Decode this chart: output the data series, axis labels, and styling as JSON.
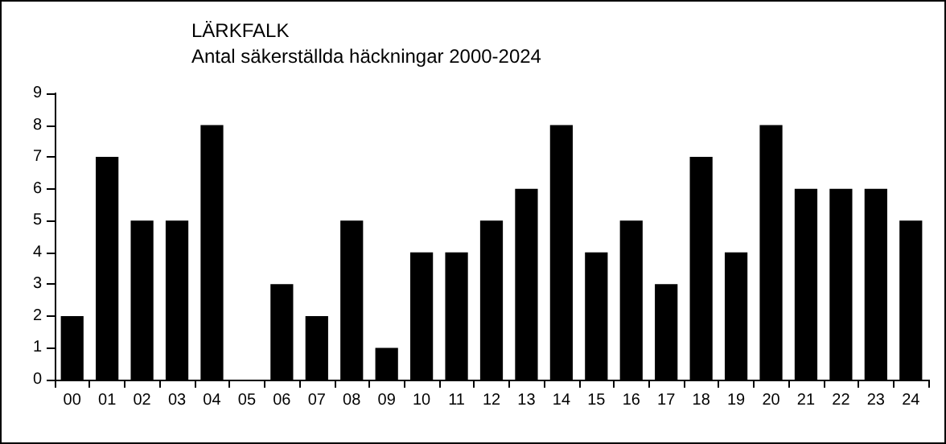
{
  "chart_data": {
    "type": "bar",
    "title": "LÄRKFALK",
    "subtitle": "Antal säkerställda häckningar 2000-2024",
    "categories": [
      "00",
      "01",
      "02",
      "03",
      "04",
      "05",
      "06",
      "07",
      "08",
      "09",
      "10",
      "11",
      "12",
      "13",
      "14",
      "15",
      "16",
      "17",
      "18",
      "19",
      "20",
      "21",
      "22",
      "23",
      "24"
    ],
    "values": [
      2,
      7,
      5,
      5,
      8,
      0,
      3,
      2,
      5,
      1,
      4,
      4,
      5,
      6,
      8,
      4,
      5,
      3,
      7,
      4,
      8,
      6,
      6,
      6,
      5
    ],
    "color": "#000000",
    "ylim": [
      0,
      9
    ],
    "yticks": [
      0,
      1,
      2,
      3,
      4,
      5,
      6,
      7,
      8,
      9
    ],
    "grid": false
  }
}
